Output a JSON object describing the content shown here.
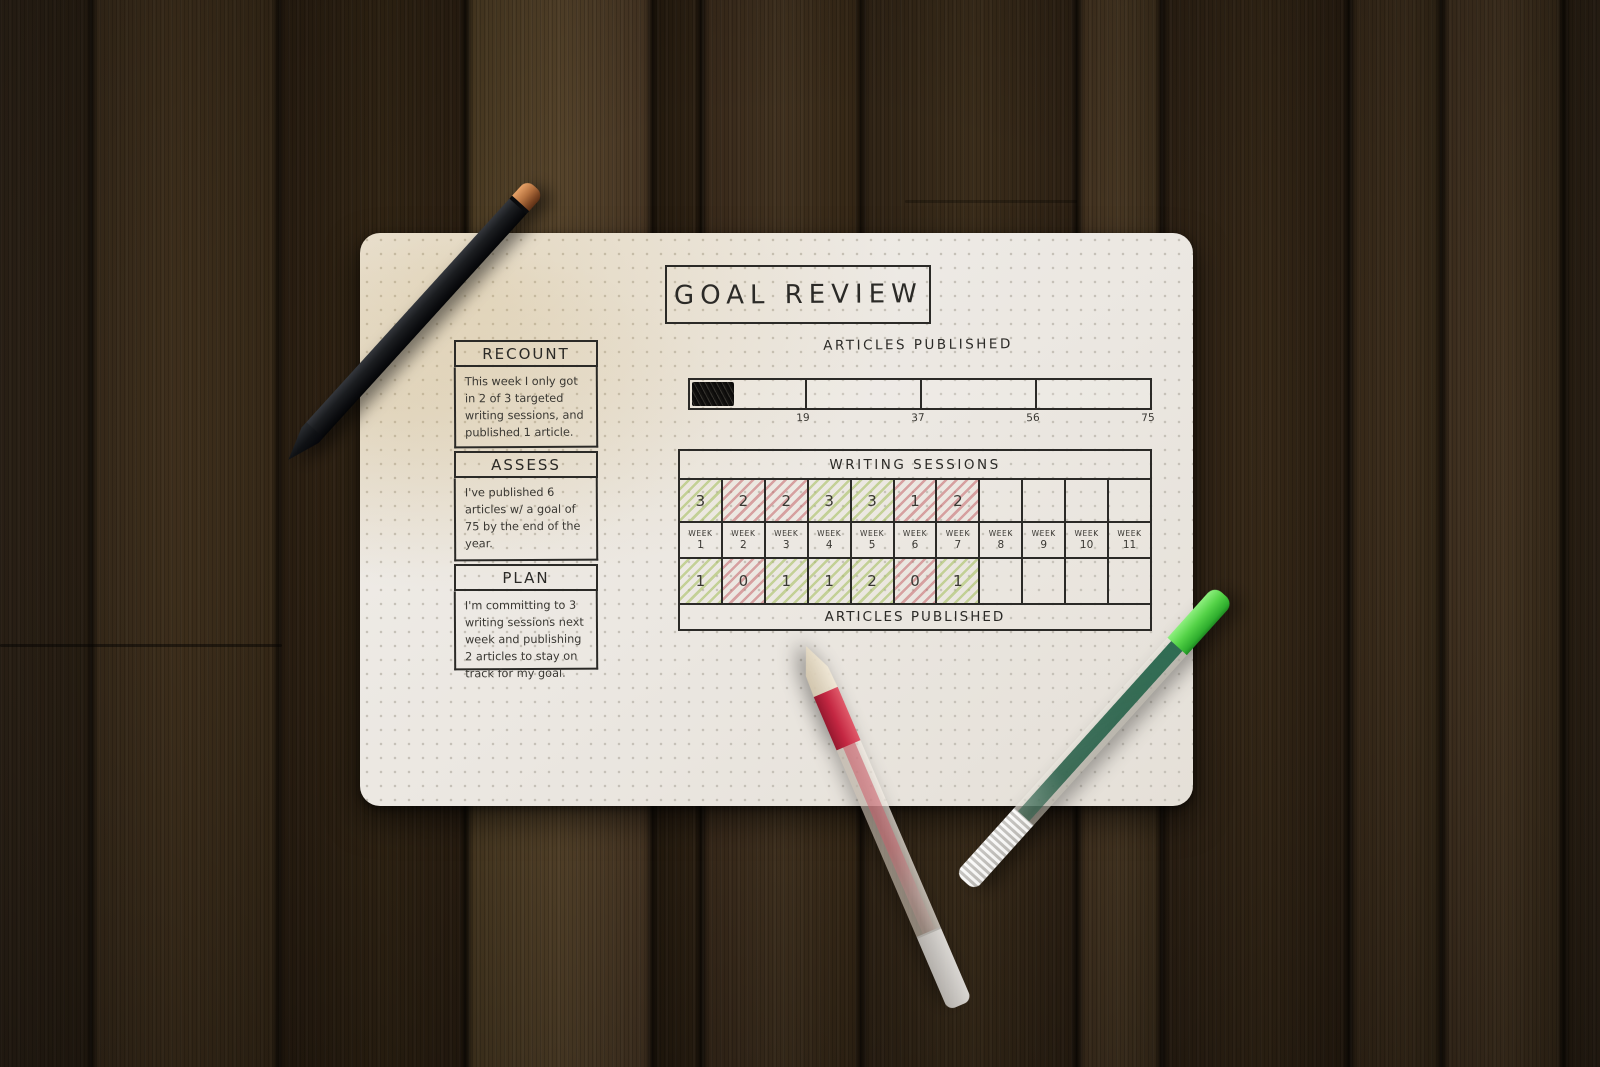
{
  "page_title": "GOAL REVIEW",
  "sections": {
    "recount": {
      "title": "RECOUNT",
      "text": "This week I only got in 2 of 3 targeted writing sessions, and published 1 article."
    },
    "assess": {
      "title": "ASSESS",
      "text": "I've published 6 articles w/ a goal of 75 by the end of the year."
    },
    "plan": {
      "title": "PLAN",
      "text": "I'm committing to 3 writing sessions next week and publishing 2 articles to stay on track for my goal."
    }
  },
  "progress_bar": {
    "title": "ARTICLES PUBLISHED",
    "tick_labels": [
      "19",
      "37",
      "56",
      "75"
    ],
    "max": 75,
    "filled_value": 6
  },
  "tracker_table": {
    "title": "WRITING SESSIONS",
    "bottom_title": "ARTICLES PUBLISHED",
    "weeks": [
      {
        "label": "WEEK",
        "num": "1"
      },
      {
        "label": "WEEK",
        "num": "2"
      },
      {
        "label": "WEEK",
        "num": "3"
      },
      {
        "label": "WEEK",
        "num": "4"
      },
      {
        "label": "WEEK",
        "num": "5"
      },
      {
        "label": "WEEK",
        "num": "6"
      },
      {
        "label": "WEEK",
        "num": "7"
      },
      {
        "label": "WEEK",
        "num": "8"
      },
      {
        "label": "WEEK",
        "num": "9"
      },
      {
        "label": "WEEK",
        "num": "10"
      },
      {
        "label": "WEEK",
        "num": "11"
      }
    ],
    "sessions": [
      {
        "value": "3",
        "status": "good"
      },
      {
        "value": "2",
        "status": "bad"
      },
      {
        "value": "2",
        "status": "bad"
      },
      {
        "value": "3",
        "status": "good"
      },
      {
        "value": "3",
        "status": "good"
      },
      {
        "value": "1",
        "status": "bad"
      },
      {
        "value": "2",
        "status": "bad"
      },
      {
        "value": "",
        "status": "none"
      },
      {
        "value": "",
        "status": "none"
      },
      {
        "value": "",
        "status": "none"
      },
      {
        "value": "",
        "status": "none"
      }
    ],
    "articles": [
      {
        "value": "1",
        "status": "good"
      },
      {
        "value": "0",
        "status": "bad"
      },
      {
        "value": "1",
        "status": "good"
      },
      {
        "value": "1",
        "status": "good"
      },
      {
        "value": "2",
        "status": "good"
      },
      {
        "value": "0",
        "status": "bad"
      },
      {
        "value": "1",
        "status": "good"
      },
      {
        "value": "",
        "status": "none"
      },
      {
        "value": "",
        "status": "none"
      },
      {
        "value": "",
        "status": "none"
      },
      {
        "value": "",
        "status": "none"
      }
    ]
  },
  "objects": {
    "black_pen": "matte black pen with copper cap end",
    "red_pen": "translucent gel pen with red ink",
    "green_pen": "translucent gel pen with green ink and bright green end"
  },
  "colors": {
    "paper": "#edeae5",
    "ink": "#2e2c29",
    "hatch_green": "#a8c164",
    "hatch_red": "#c4656a",
    "wood_dark": "#241a10",
    "wood_light": "#4a3a22",
    "black_pen_body": "#1b1d20",
    "copper_cap": "#b4713f",
    "red_ink": "#c42742",
    "green_ink": "#2f6b52",
    "green_cap": "#55d348"
  }
}
